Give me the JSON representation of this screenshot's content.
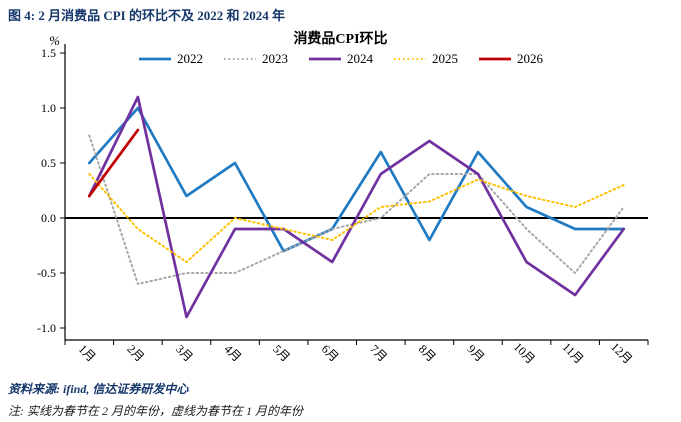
{
  "figure_title": "图 4: 2 月消费品 CPI 的环比不及 2022 和 2024 年",
  "source": "资料来源: ifind, 信达证券研发中心",
  "note": "注: 实线为春节在 2 月的年份，虚线为春节在 1 月的年份",
  "chart_data": {
    "type": "line",
    "title": "消费品CPI环比",
    "ylabel": "%",
    "xlabel": "",
    "ylim": [
      -1.0,
      1.5
    ],
    "yticks": [
      1.5,
      1.0,
      0.5,
      0.0,
      -0.5,
      -1.0
    ],
    "grid": false,
    "legend_position": "top",
    "categories": [
      "1月",
      "2月",
      "3月",
      "4月",
      "5月",
      "6月",
      "7月",
      "8月",
      "9月",
      "10月",
      "11月",
      "12月"
    ],
    "series": [
      {
        "name": "2022",
        "color": "#1f7ac2",
        "line_style": "solid",
        "values": [
          0.5,
          1.0,
          0.2,
          0.5,
          -0.3,
          -0.1,
          0.6,
          -0.2,
          0.6,
          0.1,
          -0.1,
          -0.1
        ]
      },
      {
        "name": "2023",
        "color": "#a6a6a6",
        "line_style": "dotted",
        "values": [
          0.75,
          -0.6,
          -0.5,
          -0.5,
          -0.3,
          -0.1,
          0.0,
          0.4,
          0.4,
          -0.1,
          -0.5,
          0.1
        ]
      },
      {
        "name": "2024",
        "color": "#7030a0",
        "line_style": "solid",
        "values": [
          0.2,
          1.1,
          -0.9,
          -0.1,
          -0.1,
          -0.4,
          0.4,
          0.7,
          0.4,
          -0.4,
          -0.7,
          -0.1
        ]
      },
      {
        "name": "2025",
        "color": "#ffc000",
        "line_style": "dotted",
        "values": [
          0.4,
          -0.1,
          -0.4,
          0.0,
          -0.1,
          -0.2,
          0.1,
          0.15,
          0.35,
          0.2,
          0.1,
          0.3
        ]
      },
      {
        "name": "2026",
        "color": "#c00000",
        "line_style": "solid",
        "values": [
          0.2,
          0.8,
          null,
          null,
          null,
          null,
          null,
          null,
          null,
          null,
          null,
          null
        ]
      }
    ]
  }
}
